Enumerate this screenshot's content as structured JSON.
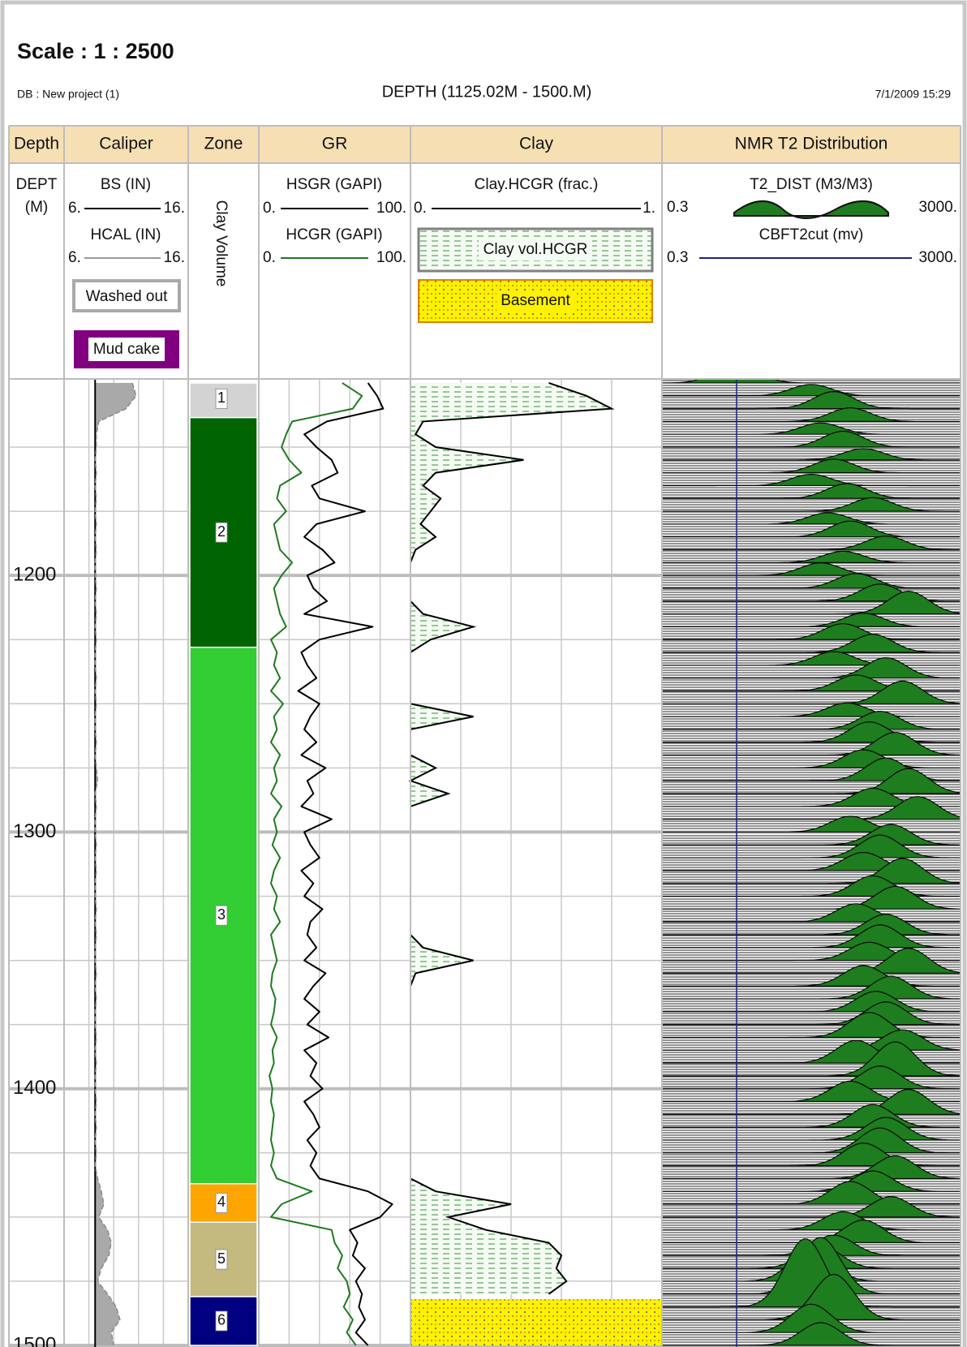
{
  "header": {
    "scale": "Scale : 1 : 2500",
    "db": "DB : New project (1)",
    "depth_range": "DEPTH (1125.02M - 1500.M)",
    "date": "7/1/2009 15:29"
  },
  "depth": [
    1125,
    1130,
    1135,
    1140,
    1145,
    1150,
    1155,
    1160,
    1165,
    1170,
    1175,
    1180,
    1185,
    1190,
    1195,
    1200,
    1205,
    1210,
    1215,
    1220,
    1225,
    1230,
    1235,
    1240,
    1245,
    1250,
    1255,
    1260,
    1265,
    1270,
    1275,
    1280,
    1285,
    1290,
    1295,
    1300,
    1305,
    1310,
    1315,
    1320,
    1325,
    1330,
    1335,
    1340,
    1345,
    1350,
    1355,
    1360,
    1365,
    1370,
    1375,
    1380,
    1385,
    1390,
    1395,
    1400,
    1405,
    1410,
    1415,
    1420,
    1425,
    1430,
    1435,
    1440,
    1445,
    1450,
    1455,
    1460,
    1465,
    1470,
    1475,
    1480,
    1485,
    1490,
    1495,
    1500
  ],
  "tracks": {
    "depth": {
      "title": "Depth",
      "mnemonic": "DEPT",
      "unit": "(M)",
      "lim": [
        1125.02,
        1500
      ],
      "ticks": [
        1200,
        1300,
        1400,
        1500
      ],
      "minor_grid": [
        1150,
        1175,
        1225,
        1250,
        1275,
        1325,
        1350,
        1375,
        1425,
        1450,
        1475
      ]
    },
    "caliper": {
      "title": "Caliper",
      "bs": {
        "label": "BS (IN)",
        "left": {
          "value": 6,
          "label": "6."
        },
        "right": {
          "value": 16,
          "label": "16."
        },
        "value": 8.5
      },
      "hcal": {
        "label": "HCAL (IN)",
        "left": {
          "value": 6,
          "label": "6."
        },
        "right": {
          "value": 16,
          "label": "16."
        },
        "values": [
          11.5,
          11.8,
          11,
          8.8,
          8.6,
          8.6,
          8.5,
          8.6,
          8.5,
          8.6,
          8.5,
          8.6,
          8.5,
          8.6,
          8.5,
          8.5,
          8.6,
          8.5,
          8.6,
          8.5,
          8.6,
          8.5,
          8.5,
          8.6,
          8.5,
          8.6,
          8.5,
          8.5,
          8.6,
          8.5,
          8.6,
          8.7,
          8.5,
          8.6,
          8.5,
          8.5,
          8.6,
          8.5,
          8.6,
          8.5,
          8.5,
          8.6,
          8.5,
          8.6,
          8.5,
          8.5,
          8.6,
          8.5,
          8.6,
          8.5,
          8.5,
          8.6,
          8.5,
          8.6,
          8.5,
          8.5,
          8.6,
          8.5,
          8.6,
          8.5,
          8.6,
          8.5,
          8.7,
          9,
          9.2,
          8.8,
          9.5,
          9.8,
          9.6,
          9,
          8.7,
          9.5,
          10.2,
          10.5,
          9.8,
          10
        ]
      },
      "washed_out": "Washed out",
      "mud_cake": "Mud cake"
    },
    "zone": {
      "title": "Zone",
      "label": "Clay Volume",
      "zones": [
        {
          "label": "1",
          "top": 1125.02,
          "bottom": 1138.5,
          "color": "#d3d3d3"
        },
        {
          "label": "2",
          "top": 1138.5,
          "bottom": 1228,
          "color": "#006400"
        },
        {
          "label": "3",
          "top": 1228,
          "bottom": 1437,
          "color": "#32cd32"
        },
        {
          "label": "4",
          "top": 1437,
          "bottom": 1452,
          "color": "#ffa500"
        },
        {
          "label": "5",
          "top": 1452,
          "bottom": 1481,
          "color": "#c4b97e"
        },
        {
          "label": "6",
          "top": 1481,
          "bottom": 1500,
          "color": "#000080"
        }
      ]
    },
    "gr": {
      "title": "GR",
      "hsgr": {
        "label": "HSGR (GAPI)",
        "color": "#000000",
        "left": {
          "value": 0,
          "label": "0."
        },
        "right": {
          "value": 100,
          "label": "100."
        },
        "values": [
          72,
          78,
          82,
          45,
          30,
          38,
          48,
          52,
          35,
          40,
          70,
          38,
          30,
          42,
          50,
          32,
          36,
          45,
          30,
          75,
          40,
          28,
          32,
          38,
          26,
          40,
          34,
          30,
          38,
          28,
          44,
          32,
          36,
          28,
          48,
          30,
          34,
          40,
          28,
          36,
          30,
          42,
          34,
          32,
          38,
          30,
          44,
          36,
          30,
          40,
          32,
          46,
          30,
          38,
          34,
          42,
          30,
          36,
          40,
          32,
          38,
          34,
          40,
          72,
          88,
          80,
          60,
          65,
          62,
          70,
          64,
          68,
          66,
          70,
          64,
          72
        ]
      },
      "hcgr": {
        "label": "HCGR (GAPI)",
        "color": "#1f7a1f",
        "left": {
          "value": 0,
          "label": "0."
        },
        "right": {
          "value": 100,
          "label": "100."
        },
        "values": [
          55,
          68,
          62,
          22,
          18,
          15,
          20,
          28,
          14,
          12,
          18,
          10,
          12,
          14,
          22,
          15,
          10,
          12,
          14,
          18,
          8,
          12,
          10,
          14,
          8,
          16,
          10,
          12,
          8,
          14,
          10,
          12,
          8,
          15,
          10,
          12,
          9,
          14,
          10,
          8,
          12,
          10,
          14,
          8,
          10,
          12,
          9,
          8,
          11,
          10,
          8,
          12,
          9,
          10,
          7,
          9,
          8,
          10,
          9,
          8,
          10,
          8,
          12,
          35,
          15,
          8,
          48,
          50,
          55,
          52,
          58,
          60,
          56,
          62,
          58,
          64
        ]
      }
    },
    "clay": {
      "title": "Clay",
      "curve": {
        "label": "Clay.HCGR (frac.)",
        "left": {
          "value": 0,
          "label": "0."
        },
        "right": {
          "value": 1,
          "label": "1."
        },
        "values": [
          0.55,
          0.7,
          0.8,
          0.05,
          0.02,
          0.1,
          0.45,
          0.1,
          0.05,
          0.12,
          0.08,
          0.04,
          0.1,
          0.02,
          0,
          0,
          0,
          0,
          0.05,
          0.25,
          0.08,
          0,
          0,
          0,
          0,
          0,
          0.25,
          0,
          0,
          0,
          0.1,
          0,
          0.15,
          0,
          0,
          0,
          0,
          0,
          0,
          0,
          0,
          0,
          0,
          0,
          0.05,
          0.25,
          0.02,
          0,
          0,
          0,
          0,
          0,
          0,
          0,
          0,
          0,
          0,
          0,
          0,
          0,
          0,
          0,
          0,
          0.1,
          0.4,
          0.15,
          0.3,
          0.55,
          0.6,
          0.58,
          0.62,
          0.55,
          null,
          null,
          null,
          null
        ]
      },
      "fill_label": "Clay vol.HCGR",
      "basement": {
        "label": "Basement",
        "top": 1482,
        "bottom": 1500
      }
    },
    "nmr": {
      "title": "NMR T2 Distribution",
      "t2": {
        "label": "T2_DIST (M3/M3)",
        "left": 0.3,
        "right": {
          "value": 3000,
          "label": "3000."
        },
        "peak": [
          3,
          30,
          60,
          100,
          40,
          80,
          150,
          60,
          30,
          90,
          200,
          50,
          100,
          300,
          80,
          40,
          120,
          250,
          600,
          150,
          80,
          200,
          60,
          300,
          120,
          500,
          90,
          250,
          180,
          400,
          150,
          300,
          600,
          200,
          800,
          100,
          350,
          250,
          150,
          500,
          200,
          400,
          120,
          300,
          250,
          180,
          600,
          150,
          350,
          220,
          300,
          180,
          500,
          120,
          400,
          250,
          100,
          600,
          200,
          300,
          250,
          150,
          400,
          200,
          100,
          350,
          80,
          150,
          60,
          40,
          30,
          40,
          25,
          60,
          30,
          40
        ],
        "amplitude": [
          0.02,
          0.01,
          0.015,
          0.012,
          0.01,
          0.014,
          0.01,
          0.012,
          0.01,
          0.013,
          0.012,
          0.01,
          0.014,
          0.012,
          0.01,
          0.011,
          0.013,
          0.015,
          0.02,
          0.012,
          0.014,
          0.016,
          0.012,
          0.018,
          0.014,
          0.02,
          0.012,
          0.016,
          0.018,
          0.02,
          0.016,
          0.02,
          0.022,
          0.016,
          0.02,
          0.014,
          0.018,
          0.02,
          0.016,
          0.022,
          0.018,
          0.02,
          0.016,
          0.018,
          0.02,
          0.016,
          0.022,
          0.018,
          0.02,
          0.018,
          0.02,
          0.022,
          0.018,
          0.02,
          0.03,
          0.02,
          0.018,
          0.022,
          0.02,
          0.02,
          0.022,
          0.02,
          0.02,
          0.018,
          0.02,
          0.018,
          0.016,
          0.02,
          0.018,
          0.02,
          0.03,
          0.05,
          0.06,
          0.04,
          0.025,
          0.02
        ]
      },
      "cbft2cut": {
        "label": "CBFT2cut (mv)",
        "left": 0.3,
        "right": {
          "value": 3000,
          "label": "3000."
        },
        "value": 3
      }
    }
  }
}
